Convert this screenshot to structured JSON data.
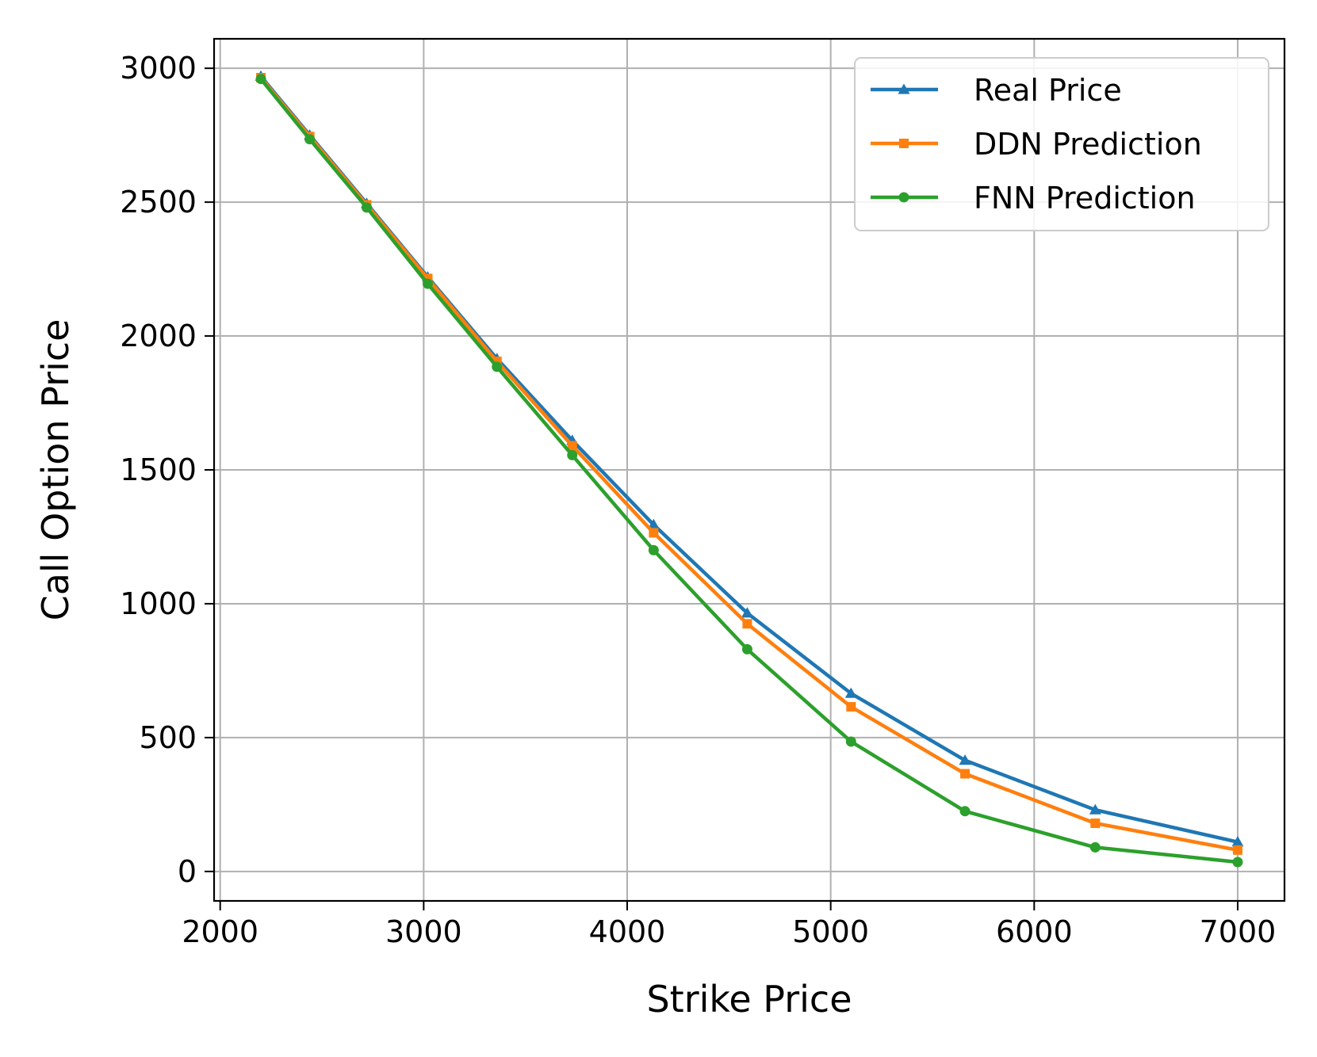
{
  "chart_data": {
    "type": "line",
    "title": "",
    "xlabel": "Strike Price",
    "ylabel": "Call Option Price",
    "xlim": [
      1970,
      7230
    ],
    "ylim": [
      -110,
      3110
    ],
    "xticks": [
      2000,
      3000,
      4000,
      5000,
      6000,
      7000
    ],
    "yticks": [
      0,
      500,
      1000,
      1500,
      2000,
      2500,
      3000
    ],
    "grid": true,
    "legend_position": "top-right",
    "x": [
      2200,
      2440,
      2720,
      3020,
      3360,
      3730,
      4130,
      4590,
      5100,
      5660,
      6300,
      7000
    ],
    "series": [
      {
        "name": "Real Price",
        "color": "#1f77b4",
        "marker": "triangle",
        "values": [
          2970,
          2750,
          2495,
          2220,
          1915,
          1610,
          1295,
          965,
          665,
          415,
          230,
          110
        ]
      },
      {
        "name": "DDN Prediction",
        "color": "#ff7f0e",
        "marker": "square",
        "values": [
          2965,
          2745,
          2490,
          2215,
          1905,
          1590,
          1265,
          925,
          615,
          365,
          180,
          80
        ]
      },
      {
        "name": "FNN Prediction",
        "color": "#2ca02c",
        "marker": "circle",
        "values": [
          2960,
          2735,
          2480,
          2195,
          1885,
          1555,
          1200,
          830,
          485,
          225,
          90,
          35
        ]
      }
    ]
  }
}
